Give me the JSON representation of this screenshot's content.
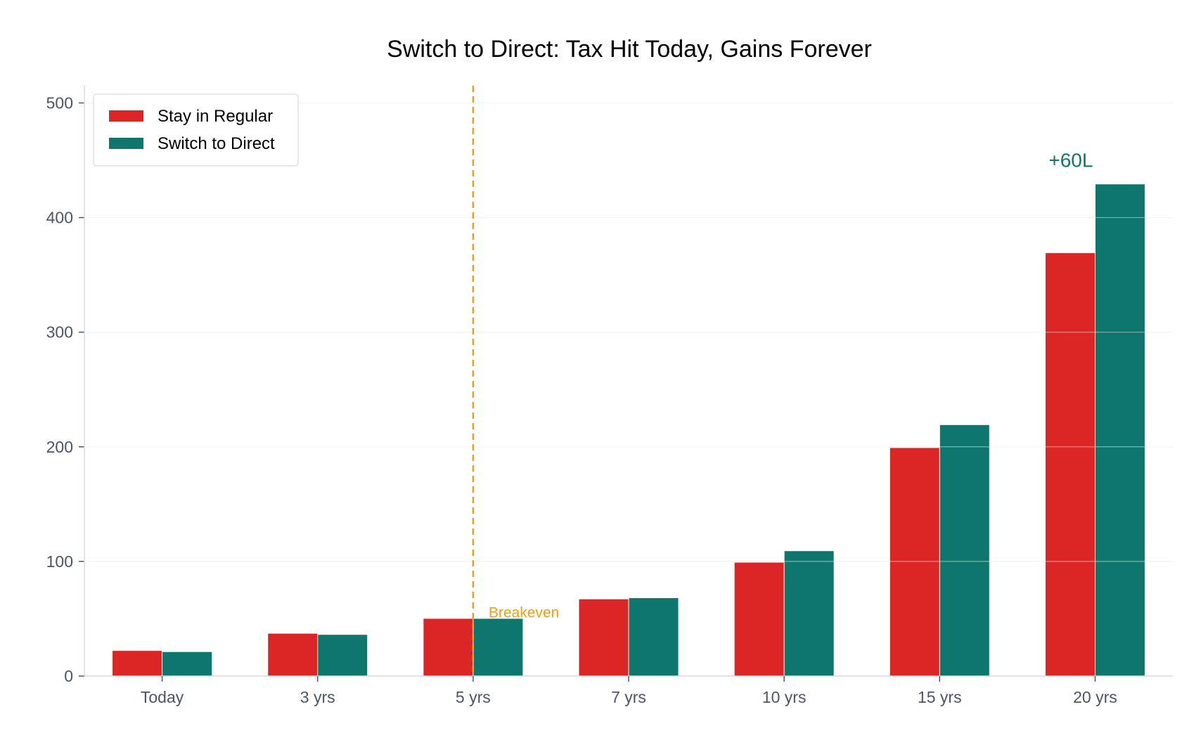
{
  "chart_data": {
    "type": "bar",
    "title": "Switch to Direct: Tax Hit Today, Gains Forever",
    "xlabel": "",
    "ylabel": "",
    "categories": [
      "Today",
      "3 yrs",
      "5 yrs",
      "7 yrs",
      "10 yrs",
      "15 yrs",
      "20 yrs"
    ],
    "series": [
      {
        "name": "Stay in Regular",
        "color": "#dc2626",
        "values": [
          22,
          37,
          50,
          67,
          99,
          199,
          369
        ]
      },
      {
        "name": "Switch to Direct",
        "color": "#0f766e",
        "values": [
          21,
          36,
          50,
          68,
          109,
          219,
          429
        ]
      }
    ],
    "ylim": [
      0,
      515
    ],
    "yticks": [
      0,
      100,
      200,
      300,
      400,
      500
    ],
    "grid": true,
    "legend": "top-left",
    "reference_line": {
      "category": "5 yrs",
      "label": "Breakeven",
      "color": "#f59e0b"
    },
    "annotation": {
      "category": "20 yrs",
      "series": "Switch to Direct",
      "text": "+60L",
      "color": "#0f766e"
    }
  }
}
